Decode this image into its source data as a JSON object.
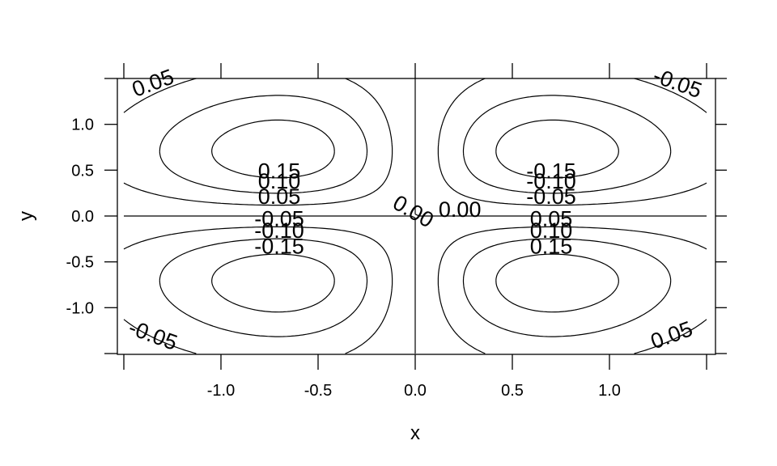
{
  "chart_data": {
    "type": "contour",
    "function": "x*y*exp(-(x^2+y^2))",
    "xlabel": "x",
    "ylabel": "y",
    "xlim": [
      -1.5,
      1.5
    ],
    "ylim": [
      -1.5,
      1.5
    ],
    "x_ticks": [
      -1.0,
      -0.5,
      0.0,
      0.5,
      1.0
    ],
    "x_tick_labels": [
      "-1.0",
      "-0.5",
      "0.0",
      "0.5",
      "1.0"
    ],
    "y_ticks": [
      -1.0,
      -0.5,
      0.0,
      0.5,
      1.0
    ],
    "y_tick_labels": [
      "-1.0",
      "-0.5",
      "0.0",
      "0.5",
      "1.0"
    ],
    "levels": [
      -0.15,
      -0.1,
      -0.05,
      0.0,
      0.05,
      0.1,
      0.15
    ],
    "contour_labels": [
      {
        "text": "0.05",
        "x": -1.35,
        "y": 1.45,
        "angle": -20
      },
      {
        "text": "-0.05",
        "x": 1.35,
        "y": 1.45,
        "angle": 20
      },
      {
        "text": "-0.05",
        "x": -1.35,
        "y": -1.3,
        "angle": 20
      },
      {
        "text": "0.05",
        "x": 1.32,
        "y": -1.3,
        "angle": -20
      },
      {
        "text": "0.15",
        "x": -0.7,
        "y": 0.49,
        "angle": 0
      },
      {
        "text": "0.10",
        "x": -0.7,
        "y": 0.38,
        "angle": 0
      },
      {
        "text": "0.05",
        "x": -0.7,
        "y": 0.21,
        "angle": 0
      },
      {
        "text": "-0.05",
        "x": -0.7,
        "y": -0.03,
        "angle": 0
      },
      {
        "text": "-0.10",
        "x": -0.7,
        "y": -0.16,
        "angle": 0
      },
      {
        "text": "-0.15",
        "x": -0.7,
        "y": -0.33,
        "angle": 0
      },
      {
        "text": "-0.15",
        "x": 0.7,
        "y": 0.49,
        "angle": 0
      },
      {
        "text": "-0.10",
        "x": 0.7,
        "y": 0.38,
        "angle": 0
      },
      {
        "text": "-0.05",
        "x": 0.7,
        "y": 0.21,
        "angle": 0
      },
      {
        "text": "0.05",
        "x": 0.7,
        "y": -0.03,
        "angle": 0
      },
      {
        "text": "0.10",
        "x": 0.7,
        "y": -0.16,
        "angle": 0
      },
      {
        "text": "0.15",
        "x": 0.7,
        "y": -0.33,
        "angle": 0
      },
      {
        "text": "0.00",
        "x": -0.01,
        "y": 0.05,
        "angle": 30
      },
      {
        "text": "0.00",
        "x": 0.23,
        "y": 0.07,
        "angle": 0
      }
    ]
  }
}
